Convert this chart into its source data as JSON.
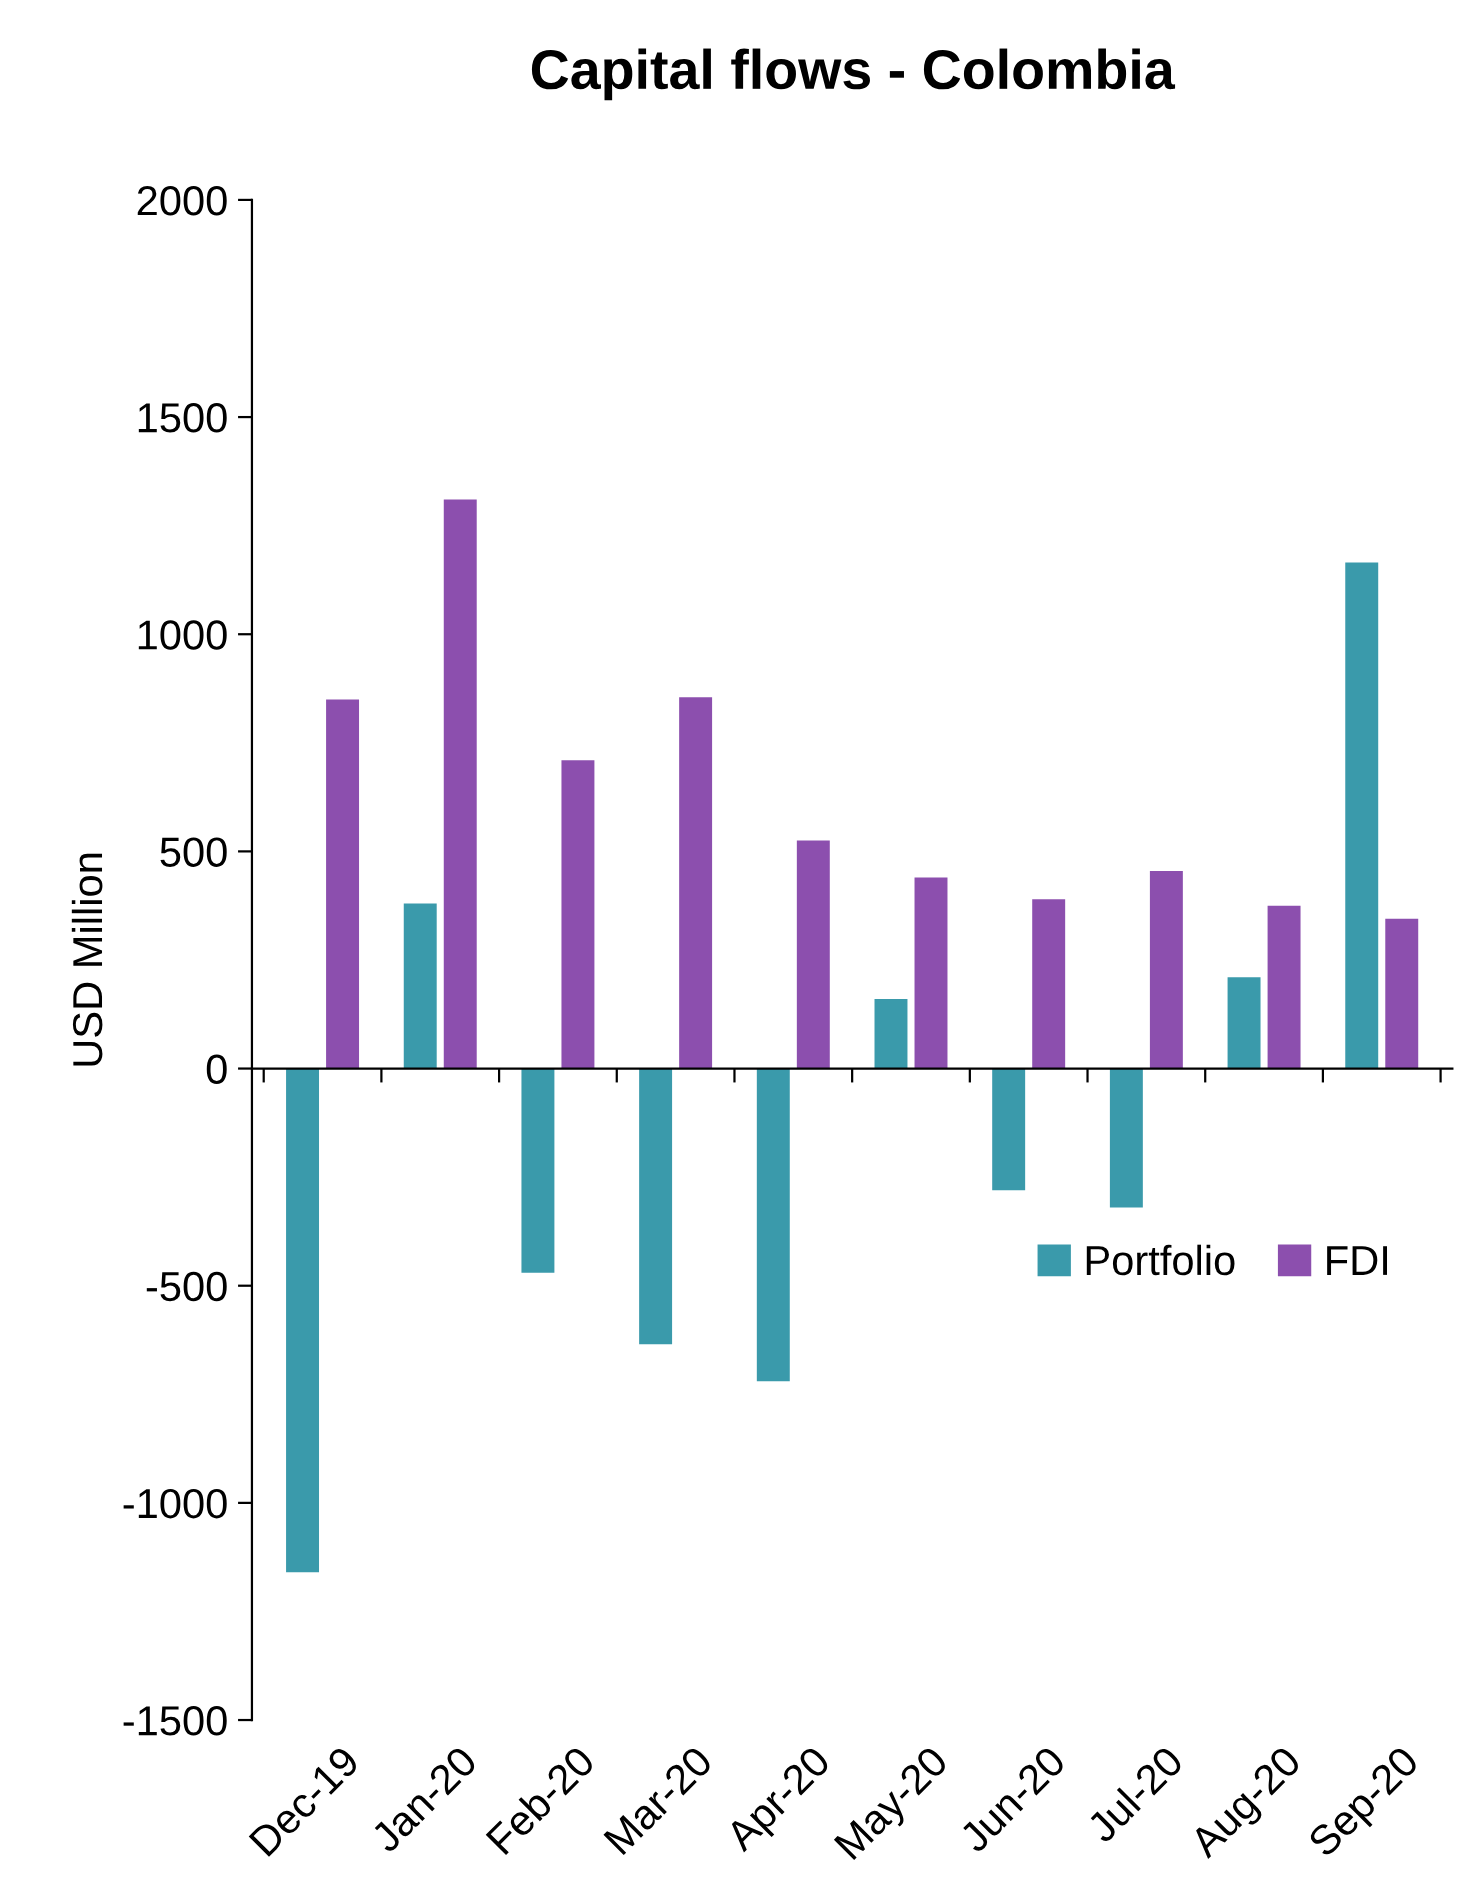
{
  "chart_data": {
    "type": "bar",
    "title": "Capital flows - Colombia",
    "ylabel": "USD Million",
    "categories": [
      "Dec-19",
      "Jan-20",
      "Feb-20",
      "Mar-20",
      "Apr-20",
      "May-20",
      "Jun-20",
      "Jul-20",
      "Aug-20",
      "Sep-20"
    ],
    "series": [
      {
        "name": "Portfolio",
        "color": "#3a9aab",
        "values": [
          -1160,
          380,
          -470,
          -635,
          -720,
          160,
          -280,
          -320,
          210,
          1165
        ]
      },
      {
        "name": "FDI",
        "color": "#8c4fae",
        "values": [
          850,
          1310,
          710,
          855,
          525,
          440,
          390,
          455,
          375,
          345
        ]
      }
    ],
    "ylim": [
      -1500,
      2000
    ],
    "yticks": [
      -1500,
      -1000,
      -500,
      0,
      500,
      1000,
      1500,
      2000
    ],
    "legend": "bottom right"
  }
}
